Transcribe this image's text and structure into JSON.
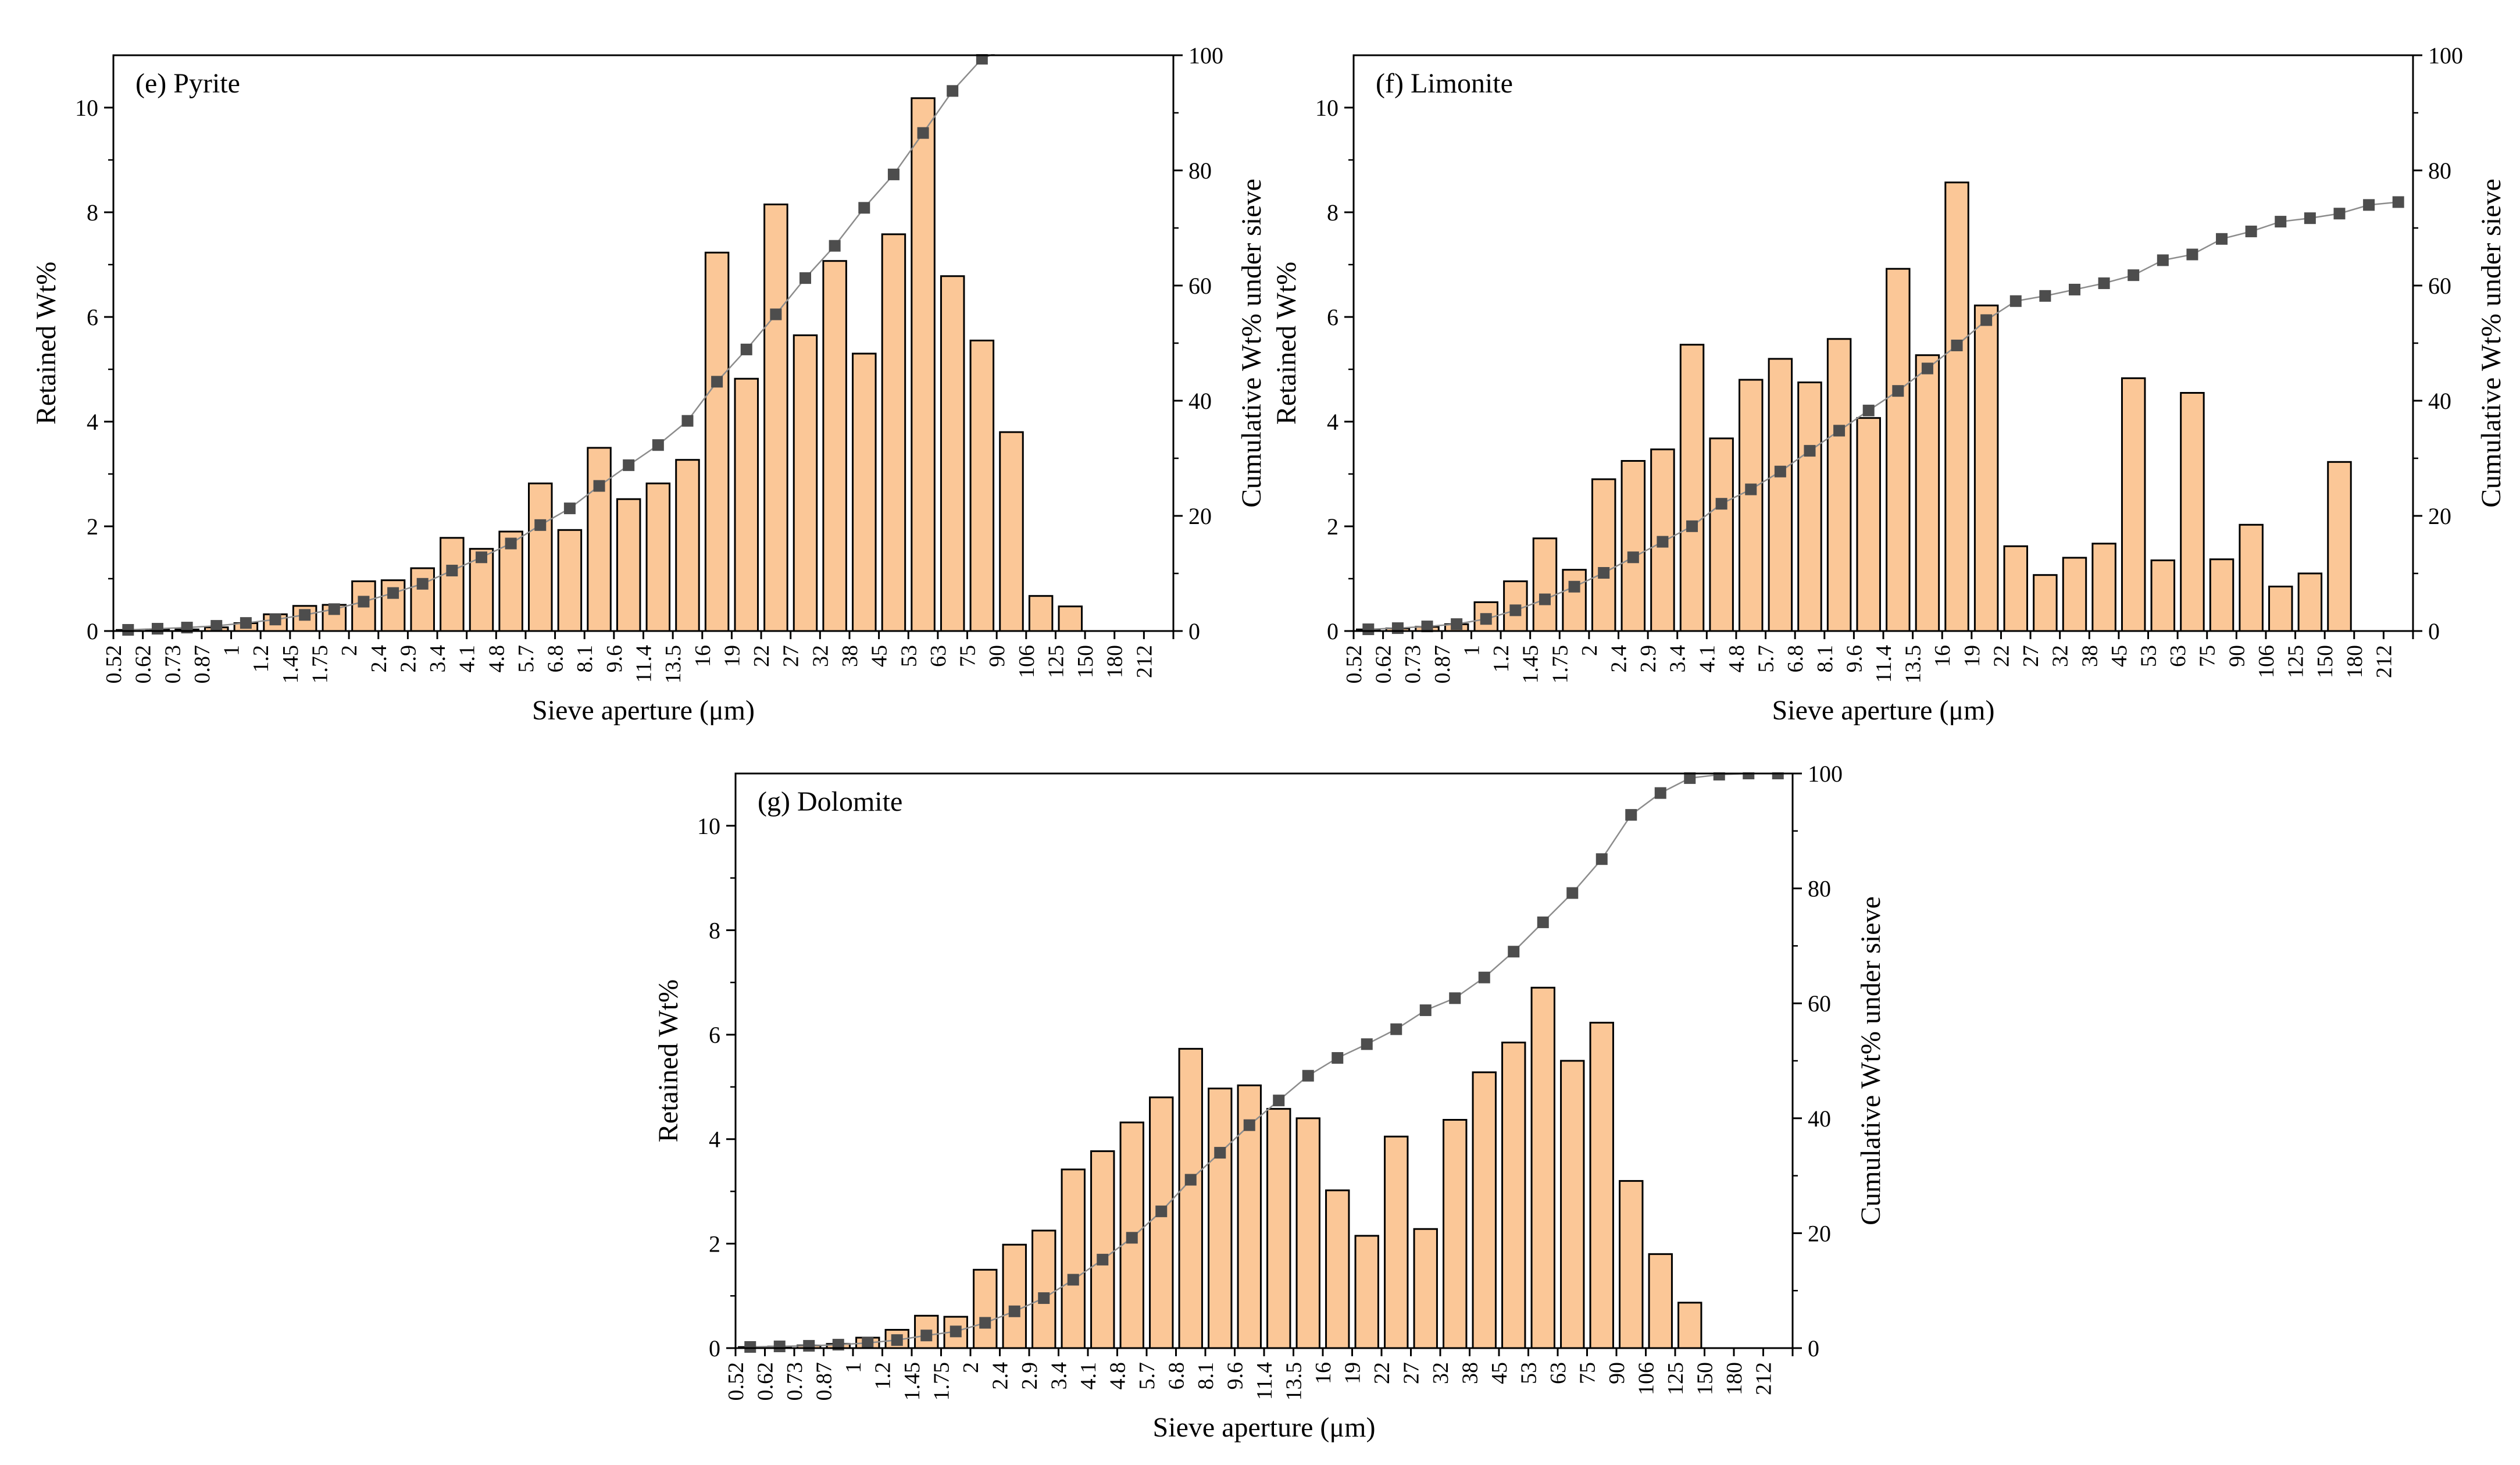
{
  "colors": {
    "bar_fill": "#FBC797",
    "bar_stroke": "#000000",
    "marker": "#4D4D4D",
    "line": "#8C8C8C",
    "axis": "#000000"
  },
  "chart_data": [
    {
      "id": "e",
      "type": "bar",
      "title": "(e)  Pyrite",
      "xlabel": "Sieve aperture (μm)",
      "ylabel": "Retained Wt%",
      "y2label": "Cumulative Wt% under sieve",
      "ylim": [
        0,
        11
      ],
      "y2lim": [
        0,
        100
      ],
      "yticks": [
        0,
        2,
        4,
        6,
        8,
        10
      ],
      "y2ticks": [
        0,
        20,
        40,
        60,
        80,
        100
      ],
      "categories": [
        "0.52",
        "0.62",
        "0.73",
        "0.87",
        "1",
        "1.2",
        "1.45",
        "1.75",
        "2",
        "2.4",
        "2.9",
        "3.4",
        "4.1",
        "4.8",
        "5.7",
        "6.8",
        "8.1",
        "9.6",
        "11.4",
        "13.5",
        "16",
        "19",
        "22",
        "27",
        "32",
        "38",
        "45",
        "53",
        "63",
        "75",
        "90",
        "106",
        "125",
        "150",
        "180",
        "212"
      ],
      "series": [
        {
          "type": "bar",
          "values": [
            0.02,
            0.03,
            0.03,
            0.07,
            0.15,
            0.32,
            0.48,
            0.5,
            0.95,
            0.97,
            1.2,
            1.78,
            1.57,
            1.9,
            2.82,
            1.93,
            3.5,
            2.52,
            2.82,
            3.27,
            7.23,
            4.82,
            8.15,
            5.65,
            7.07,
            5.3,
            7.58,
            10.18,
            6.78,
            5.55,
            3.8,
            0.67,
            0.47,
            0,
            0,
            0
          ]
        },
        {
          "type": "line",
          "values": [
            0.2,
            0.4,
            0.6,
            0.9,
            1.4,
            2.0,
            2.8,
            3.8,
            5.1,
            6.6,
            8.2,
            10.5,
            12.8,
            15.2,
            18.4,
            21.3,
            25.2,
            28.8,
            32.3,
            36.5,
            43.3,
            48.9,
            55.0,
            61.3,
            66.9,
            73.5,
            79.3,
            86.5,
            93.8,
            99.4,
            101.5,
            102.0,
            102.3,
            102.4,
            102.5,
            102.5
          ]
        }
      ]
    },
    {
      "id": "f",
      "type": "bar",
      "title": "(f) Limonite",
      "xlabel": "Sieve aperture (μm)",
      "ylabel": "Retained Wt%",
      "y2label": "Cumulative Wt% under sieve",
      "ylim": [
        0,
        11
      ],
      "y2lim": [
        0,
        100
      ],
      "yticks": [
        0,
        2,
        4,
        6,
        8,
        10
      ],
      "y2ticks": [
        0,
        20,
        40,
        60,
        80,
        100
      ],
      "categories": [
        "0.52",
        "0.62",
        "0.73",
        "0.87",
        "1",
        "1.2",
        "1.45",
        "1.75",
        "2",
        "2.4",
        "2.9",
        "3.4",
        "4.1",
        "4.8",
        "5.7",
        "6.8",
        "8.1",
        "9.6",
        "11.4",
        "13.5",
        "16",
        "19",
        "22",
        "27",
        "32",
        "38",
        "45",
        "53",
        "63",
        "75",
        "90",
        "106",
        "125",
        "150",
        "180",
        "212"
      ],
      "series": [
        {
          "type": "bar",
          "values": [
            0.03,
            0.05,
            0.08,
            0.13,
            0.55,
            0.95,
            1.77,
            1.17,
            2.9,
            3.25,
            3.47,
            5.47,
            3.68,
            4.8,
            5.2,
            4.75,
            5.58,
            4.07,
            6.92,
            5.27,
            8.57,
            6.22,
            1.62,
            1.07,
            1.4,
            1.67,
            4.83,
            1.35,
            4.55,
            1.37,
            2.03,
            0.85,
            1.1,
            3.23,
            0,
            0
          ]
        },
        {
          "type": "line",
          "values": [
            0.3,
            0.5,
            0.8,
            1.2,
            2.1,
            3.6,
            5.5,
            7.7,
            10.1,
            12.8,
            15.5,
            18.2,
            22.1,
            24.6,
            27.7,
            31.3,
            34.8,
            38.3,
            41.7,
            45.6,
            49.6,
            54.0,
            57.3,
            58.2,
            59.3,
            60.4,
            61.8,
            64.4,
            65.4,
            68.1,
            69.4,
            71.1,
            71.7,
            72.5,
            74.0,
            74.5
          ]
        }
      ]
    },
    {
      "id": "g",
      "type": "bar",
      "title": "(g) Dolomite",
      "xlabel": "Sieve aperture (μm)",
      "ylabel": "Retained Wt%",
      "y2label": "Cumulative Wt% under sieve",
      "ylim": [
        0,
        11
      ],
      "y2lim": [
        0,
        100
      ],
      "yticks": [
        0,
        2,
        4,
        6,
        8,
        10
      ],
      "y2ticks": [
        0,
        20,
        40,
        60,
        80,
        100
      ],
      "categories": [
        "0.52",
        "0.62",
        "0.73",
        "0.87",
        "1",
        "1.2",
        "1.45",
        "1.75",
        "2",
        "2.4",
        "2.9",
        "3.4",
        "4.1",
        "4.8",
        "5.7",
        "6.8",
        "8.1",
        "9.6",
        "11.4",
        "13.5",
        "16",
        "19",
        "22",
        "27",
        "32",
        "38",
        "45",
        "53",
        "63",
        "75",
        "90",
        "106",
        "125",
        "150",
        "180",
        "212"
      ],
      "series": [
        {
          "type": "bar",
          "values": [
            0.02,
            0.03,
            0.05,
            0.08,
            0.2,
            0.35,
            0.62,
            0.6,
            1.5,
            1.98,
            2.25,
            3.42,
            3.77,
            4.32,
            4.8,
            5.73,
            4.97,
            5.03,
            4.58,
            4.4,
            3.02,
            2.15,
            4.05,
            2.28,
            4.37,
            5.28,
            5.85,
            6.9,
            5.5,
            6.23,
            3.2,
            1.8,
            0.87,
            0,
            0,
            0
          ]
        },
        {
          "type": "line",
          "values": [
            0.2,
            0.3,
            0.4,
            0.6,
            0.9,
            1.4,
            2.2,
            2.9,
            4.4,
            6.4,
            8.7,
            11.9,
            15.4,
            19.2,
            23.8,
            29.3,
            34.0,
            38.8,
            43.1,
            47.4,
            50.5,
            52.9,
            55.5,
            58.8,
            60.9,
            64.5,
            69.0,
            74.1,
            79.2,
            85.1,
            92.8,
            96.6,
            99.2,
            99.8,
            100.0,
            100.0
          ]
        }
      ]
    }
  ]
}
